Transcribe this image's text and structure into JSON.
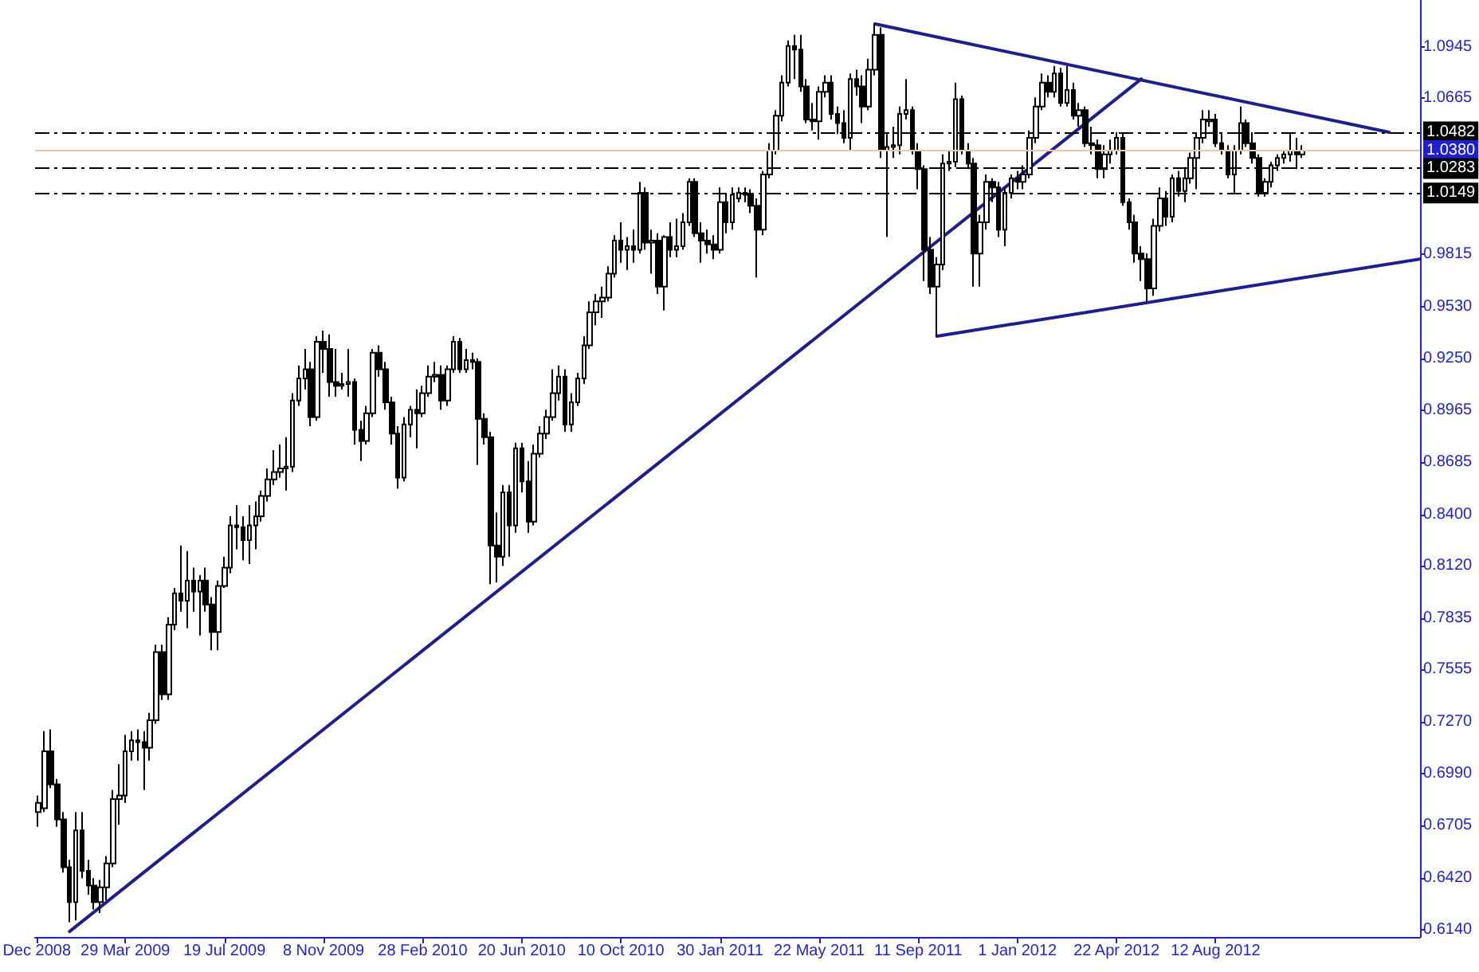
{
  "chart_data": {
    "type": "candlestick",
    "series": [
      {
        "type": "line",
        "color": "#1e1e8c",
        "x": [
          "2009-01-25",
          "2012-05-20"
        ],
        "values": [
          0.613,
          1.077
        ]
      },
      {
        "type": "line",
        "color": "#1e1e8c",
        "x": [
          "2011-07-24",
          "2013-02-24"
        ],
        "values": [
          1.107,
          1.048
        ]
      },
      {
        "type": "line",
        "color": "#1e1e8c",
        "x": [
          "2011-10-02",
          "2013-03-31"
        ],
        "values": [
          0.937,
          0.979
        ]
      },
      {
        "type": "candlestick",
        "color": "#000000",
        "x": [
          "2008-12-21",
          "2008-12-28",
          "2009-01-04",
          "2009-01-11",
          "2009-01-18",
          "2009-01-25",
          "2009-02-01",
          "2009-02-08",
          "2009-02-15",
          "2009-02-22",
          "2009-03-01",
          "2009-03-08",
          "2009-03-15",
          "2009-03-22",
          "2009-03-29",
          "2009-04-05",
          "2009-04-12",
          "2009-04-19",
          "2009-04-26",
          "2009-05-03",
          "2009-05-10",
          "2009-05-17",
          "2009-05-24",
          "2009-05-31",
          "2009-06-07",
          "2009-06-14",
          "2009-06-21",
          "2009-06-28",
          "2009-07-05",
          "2009-07-12",
          "2009-07-19",
          "2009-07-26",
          "2009-08-02",
          "2009-08-09",
          "2009-08-16",
          "2009-08-23",
          "2009-08-30",
          "2009-09-06",
          "2009-09-13",
          "2009-09-20",
          "2009-09-27",
          "2009-10-04",
          "2009-10-11",
          "2009-10-18",
          "2009-10-25",
          "2009-11-01",
          "2009-11-08",
          "2009-11-15",
          "2009-11-22",
          "2009-11-29",
          "2009-12-06",
          "2009-12-13",
          "2009-12-20",
          "2009-12-27",
          "2010-01-03",
          "2010-01-10",
          "2010-01-17",
          "2010-01-24",
          "2010-01-31",
          "2010-02-07",
          "2010-02-14",
          "2010-02-21",
          "2010-02-28",
          "2010-03-07",
          "2010-03-14",
          "2010-03-21",
          "2010-03-28",
          "2010-04-04",
          "2010-04-11",
          "2010-04-18",
          "2010-04-25",
          "2010-05-02",
          "2010-05-09",
          "2010-05-16",
          "2010-05-23",
          "2010-05-30",
          "2010-06-06",
          "2010-06-13",
          "2010-06-20",
          "2010-06-27",
          "2010-07-04",
          "2010-07-11",
          "2010-07-18",
          "2010-07-25",
          "2010-08-01",
          "2010-08-08",
          "2010-08-15",
          "2010-08-22",
          "2010-08-29",
          "2010-09-05",
          "2010-09-12",
          "2010-09-19",
          "2010-09-26",
          "2010-10-03",
          "2010-10-10",
          "2010-10-17",
          "2010-10-24",
          "2010-10-31",
          "2010-11-07",
          "2010-11-14",
          "2010-11-21",
          "2010-11-28",
          "2010-12-05",
          "2010-12-12",
          "2010-12-19",
          "2010-12-26",
          "2011-01-02",
          "2011-01-09",
          "2011-01-16",
          "2011-01-23",
          "2011-01-30",
          "2011-02-06",
          "2011-02-13",
          "2011-02-20",
          "2011-02-27",
          "2011-03-06",
          "2011-03-13",
          "2011-03-20",
          "2011-03-27",
          "2011-04-03",
          "2011-04-10",
          "2011-04-17",
          "2011-04-24",
          "2011-05-01",
          "2011-05-08",
          "2011-05-15",
          "2011-05-22",
          "2011-05-29",
          "2011-06-05",
          "2011-06-12",
          "2011-06-19",
          "2011-06-26",
          "2011-07-03",
          "2011-07-10",
          "2011-07-17",
          "2011-07-24",
          "2011-07-31",
          "2011-08-07",
          "2011-08-14",
          "2011-08-21",
          "2011-08-28",
          "2011-09-04",
          "2011-09-11",
          "2011-09-18",
          "2011-09-25",
          "2011-10-02",
          "2011-10-09",
          "2011-10-16",
          "2011-10-23",
          "2011-10-30",
          "2011-11-06",
          "2011-11-13",
          "2011-11-20",
          "2011-11-27",
          "2011-12-04",
          "2011-12-11",
          "2011-12-18",
          "2011-12-25",
          "2012-01-01",
          "2012-01-08",
          "2012-01-15",
          "2012-01-22",
          "2012-01-29",
          "2012-02-05",
          "2012-02-12",
          "2012-02-19",
          "2012-02-26",
          "2012-03-04",
          "2012-03-11",
          "2012-03-18",
          "2012-03-25",
          "2012-04-01",
          "2012-04-08",
          "2012-04-15",
          "2012-04-22",
          "2012-04-29",
          "2012-05-06",
          "2012-05-13",
          "2012-05-20",
          "2012-05-27",
          "2012-06-03",
          "2012-06-10",
          "2012-06-17",
          "2012-06-24",
          "2012-07-01",
          "2012-07-08",
          "2012-07-15",
          "2012-07-22",
          "2012-07-29",
          "2012-08-05",
          "2012-08-12",
          "2012-08-19",
          "2012-08-26",
          "2012-09-02",
          "2012-09-09",
          "2012-09-16",
          "2012-09-23",
          "2012-09-30",
          "2012-10-07",
          "2012-10-14",
          "2012-10-21",
          "2012-10-28",
          "2012-11-04",
          "2012-11-11",
          "2012-11-18"
        ],
        "ohlc": [
          [
            0.678,
            0.687,
            0.67,
            0.683
          ],
          [
            0.68,
            0.722,
            0.678,
            0.711
          ],
          [
            0.711,
            0.723,
            0.691,
            0.693
          ],
          [
            0.693,
            0.696,
            0.67,
            0.674
          ],
          [
            0.674,
            0.678,
            0.645,
            0.648
          ],
          [
            0.648,
            0.652,
            0.618,
            0.629
          ],
          [
            0.629,
            0.678,
            0.619,
            0.668
          ],
          [
            0.668,
            0.678,
            0.642,
            0.646
          ],
          [
            0.646,
            0.652,
            0.633,
            0.638
          ],
          [
            0.638,
            0.642,
            0.625,
            0.629
          ],
          [
            0.629,
            0.641,
            0.623,
            0.637
          ],
          [
            0.637,
            0.654,
            0.63,
            0.65
          ],
          [
            0.65,
            0.69,
            0.648,
            0.685
          ],
          [
            0.685,
            0.704,
            0.671,
            0.687
          ],
          [
            0.687,
            0.72,
            0.683,
            0.711
          ],
          [
            0.711,
            0.722,
            0.706,
            0.717
          ],
          [
            0.717,
            0.723,
            0.706,
            0.716
          ],
          [
            0.716,
            0.722,
            0.69,
            0.713
          ],
          [
            0.713,
            0.732,
            0.706,
            0.728
          ],
          [
            0.728,
            0.769,
            0.726,
            0.765
          ],
          [
            0.765,
            0.769,
            0.739,
            0.742
          ],
          [
            0.742,
            0.784,
            0.739,
            0.78
          ],
          [
            0.78,
            0.8,
            0.777,
            0.797
          ],
          [
            0.797,
            0.823,
            0.787,
            0.793
          ],
          [
            0.793,
            0.82,
            0.778,
            0.804
          ],
          [
            0.804,
            0.811,
            0.787,
            0.798
          ],
          [
            0.798,
            0.807,
            0.774,
            0.804
          ],
          [
            0.804,
            0.811,
            0.787,
            0.791
          ],
          [
            0.791,
            0.795,
            0.766,
            0.776
          ],
          [
            0.776,
            0.804,
            0.766,
            0.801
          ],
          [
            0.801,
            0.817,
            0.8,
            0.811
          ],
          [
            0.811,
            0.839,
            0.808,
            0.834
          ],
          [
            0.834,
            0.845,
            0.821,
            0.833
          ],
          [
            0.833,
            0.839,
            0.815,
            0.826
          ],
          [
            0.826,
            0.845,
            0.813,
            0.834
          ],
          [
            0.834,
            0.847,
            0.821,
            0.839
          ],
          [
            0.839,
            0.853,
            0.836,
            0.85
          ],
          [
            0.85,
            0.865,
            0.847,
            0.859
          ],
          [
            0.859,
            0.875,
            0.856,
            0.863
          ],
          [
            0.863,
            0.878,
            0.86,
            0.865
          ],
          [
            0.865,
            0.882,
            0.853,
            0.866
          ],
          [
            0.866,
            0.906,
            0.863,
            0.902
          ],
          [
            0.902,
            0.921,
            0.899,
            0.914
          ],
          [
            0.914,
            0.93,
            0.908,
            0.919
          ],
          [
            0.919,
            0.923,
            0.888,
            0.893
          ],
          [
            0.893,
            0.937,
            0.891,
            0.934
          ],
          [
            0.934,
            0.94,
            0.917,
            0.93
          ],
          [
            0.93,
            0.938,
            0.904,
            0.912
          ],
          [
            0.912,
            0.93,
            0.904,
            0.91
          ],
          [
            0.91,
            0.917,
            0.908,
            0.911
          ],
          [
            0.911,
            0.93,
            0.904,
            0.912
          ],
          [
            0.912,
            0.914,
            0.878,
            0.886
          ],
          [
            0.886,
            0.891,
            0.869,
            0.88
          ],
          [
            0.88,
            0.899,
            0.878,
            0.895
          ],
          [
            0.895,
            0.93,
            0.893,
            0.928
          ],
          [
            0.928,
            0.932,
            0.915,
            0.919
          ],
          [
            0.919,
            0.923,
            0.897,
            0.901
          ],
          [
            0.901,
            0.904,
            0.878,
            0.884
          ],
          [
            0.884,
            0.888,
            0.854,
            0.86
          ],
          [
            0.86,
            0.893,
            0.858,
            0.889
          ],
          [
            0.889,
            0.899,
            0.882,
            0.897
          ],
          [
            0.897,
            0.908,
            0.876,
            0.895
          ],
          [
            0.895,
            0.91,
            0.893,
            0.906
          ],
          [
            0.906,
            0.921,
            0.904,
            0.915
          ],
          [
            0.915,
            0.923,
            0.912,
            0.916
          ],
          [
            0.916,
            0.921,
            0.897,
            0.902
          ],
          [
            0.902,
            0.921,
            0.899,
            0.919
          ],
          [
            0.919,
            0.937,
            0.917,
            0.934
          ],
          [
            0.934,
            0.936,
            0.917,
            0.919
          ],
          [
            0.919,
            0.93,
            0.917,
            0.924
          ],
          [
            0.924,
            0.928,
            0.919,
            0.923
          ],
          [
            0.923,
            0.925,
            0.867,
            0.892
          ],
          [
            0.892,
            0.895,
            0.878,
            0.882
          ],
          [
            0.882,
            0.885,
            0.802,
            0.823
          ],
          [
            0.823,
            0.841,
            0.803,
            0.817
          ],
          [
            0.817,
            0.856,
            0.812,
            0.852
          ],
          [
            0.852,
            0.856,
            0.817,
            0.834
          ],
          [
            0.834,
            0.879,
            0.83,
            0.876
          ],
          [
            0.876,
            0.879,
            0.852,
            0.858
          ],
          [
            0.858,
            0.869,
            0.83,
            0.836
          ],
          [
            0.836,
            0.878,
            0.834,
            0.873
          ],
          [
            0.873,
            0.888,
            0.871,
            0.884
          ],
          [
            0.884,
            0.897,
            0.881,
            0.893
          ],
          [
            0.893,
            0.919,
            0.891,
            0.906
          ],
          [
            0.906,
            0.921,
            0.902,
            0.915
          ],
          [
            0.915,
            0.919,
            0.885,
            0.889
          ],
          [
            0.889,
            0.906,
            0.885,
            0.901
          ],
          [
            0.901,
            0.917,
            0.899,
            0.914
          ],
          [
            0.914,
            0.937,
            0.911,
            0.932
          ],
          [
            0.932,
            0.956,
            0.93,
            0.95
          ],
          [
            0.95,
            0.96,
            0.943,
            0.956
          ],
          [
            0.956,
            0.964,
            0.947,
            0.958
          ],
          [
            0.958,
            0.975,
            0.956,
            0.971
          ],
          [
            0.971,
            0.992,
            0.969,
            0.989
          ],
          [
            0.989,
            0.999,
            0.977,
            0.984
          ],
          [
            0.984,
            0.991,
            0.973,
            0.986
          ],
          [
            0.986,
            0.995,
            0.977,
            0.984
          ],
          [
            0.984,
            1.021,
            0.982,
            1.015
          ],
          [
            1.015,
            1.018,
            0.984,
            0.988
          ],
          [
            0.988,
            0.995,
            0.971,
            0.989
          ],
          [
            0.989,
            0.993,
            0.96,
            0.964
          ],
          [
            0.964,
            0.992,
            0.951,
            0.991
          ],
          [
            0.991,
            0.999,
            0.98,
            0.984
          ],
          [
            0.984,
            1.001,
            0.98,
            0.986
          ],
          [
            0.986,
            1.004,
            0.984,
            0.999
          ],
          [
            0.999,
            1.023,
            0.997,
            1.021
          ],
          [
            1.021,
            1.023,
            0.991,
            0.993
          ],
          [
            0.993,
            0.999,
            0.977,
            0.989
          ],
          [
            0.989,
            0.995,
            0.982,
            0.987
          ],
          [
            0.987,
            0.992,
            0.979,
            0.984
          ],
          [
            0.984,
            1.018,
            0.982,
            1.01
          ],
          [
            1.01,
            1.015,
            0.993,
            0.999
          ],
          [
            0.999,
            1.018,
            0.995,
            1.014
          ],
          [
            1.012,
            1.018,
            1.01,
            1.015
          ],
          [
            1.015,
            1.018,
            1.01,
            1.014
          ],
          [
            1.014,
            1.017,
            1.004,
            1.008
          ],
          [
            1.008,
            1.012,
            0.969,
            0.995
          ],
          [
            0.995,
            1.027,
            0.992,
            1.025
          ],
          [
            1.025,
            1.042,
            1.023,
            1.038
          ],
          [
            1.038,
            1.06,
            1.036,
            1.057
          ],
          [
            1.057,
            1.079,
            1.054,
            1.075
          ],
          [
            1.075,
            1.098,
            1.073,
            1.095
          ],
          [
            1.095,
            1.101,
            1.077,
            1.093
          ],
          [
            1.093,
            1.101,
            1.07,
            1.073
          ],
          [
            1.073,
            1.077,
            1.053,
            1.055
          ],
          [
            1.055,
            1.064,
            1.049,
            1.054
          ],
          [
            1.054,
            1.073,
            1.044,
            1.07
          ],
          [
            1.07,
            1.079,
            1.067,
            1.075
          ],
          [
            1.075,
            1.079,
            1.055,
            1.058
          ],
          [
            1.058,
            1.062,
            1.047,
            1.053
          ],
          [
            1.053,
            1.06,
            1.042,
            1.045
          ],
          [
            1.045,
            1.08,
            1.038,
            1.077
          ],
          [
            1.077,
            1.082,
            1.068,
            1.073
          ],
          [
            1.073,
            1.079,
            1.053,
            1.062
          ],
          [
            1.062,
            1.088,
            1.06,
            1.082
          ],
          [
            1.082,
            1.107,
            1.079,
            1.101
          ],
          [
            1.101,
            1.105,
            1.034,
            1.038
          ],
          [
            1.038,
            1.047,
            0.991,
            1.04
          ],
          [
            1.04,
            1.051,
            1.034,
            1.041
          ],
          [
            1.041,
            1.062,
            1.036,
            1.058
          ],
          [
            1.058,
            1.077,
            1.055,
            1.06
          ],
          [
            1.06,
            1.062,
            1.036,
            1.038
          ],
          [
            1.038,
            1.042,
            1.017,
            1.028
          ],
          [
            1.028,
            1.03,
            0.967,
            0.984
          ],
          [
            0.984,
            0.991,
            0.96,
            0.964
          ],
          [
            0.964,
            0.98,
            0.937,
            0.976
          ],
          [
            0.976,
            1.036,
            0.973,
            1.031
          ],
          [
            1.031,
            1.038,
            1.027,
            1.032
          ],
          [
            1.032,
            1.075,
            1.029,
            1.066
          ],
          [
            1.066,
            1.068,
            1.036,
            1.038
          ],
          [
            1.038,
            1.042,
            1.028,
            1.031
          ],
          [
            1.031,
            1.034,
            0.964,
            0.982
          ],
          [
            0.982,
            1.003,
            0.964,
            0.999
          ],
          [
            0.999,
            1.025,
            0.995,
            1.021
          ],
          [
            1.021,
            1.023,
            1.01,
            1.018
          ],
          [
            1.018,
            1.021,
            0.991,
            0.995
          ],
          [
            0.995,
            1.018,
            0.986,
            1.015
          ],
          [
            1.015,
            1.025,
            1.012,
            1.023
          ],
          [
            1.023,
            1.027,
            1.017,
            1.021
          ],
          [
            1.021,
            1.03,
            1.017,
            1.025
          ],
          [
            1.025,
            1.049,
            1.023,
            1.045
          ],
          [
            1.045,
            1.067,
            1.042,
            1.062
          ],
          [
            1.062,
            1.08,
            1.06,
            1.075
          ],
          [
            1.075,
            1.079,
            1.067,
            1.07
          ],
          [
            1.07,
            1.084,
            1.067,
            1.08
          ],
          [
            1.08,
            1.083,
            1.062,
            1.064
          ],
          [
            1.064,
            1.084,
            1.062,
            1.071
          ],
          [
            1.071,
            1.075,
            1.055,
            1.057
          ],
          [
            1.057,
            1.064,
            1.051,
            1.06
          ],
          [
            1.06,
            1.062,
            1.04,
            1.042
          ],
          [
            1.042,
            1.051,
            1.036,
            1.041
          ],
          [
            1.041,
            1.044,
            1.023,
            1.028
          ],
          [
            1.028,
            1.041,
            1.023,
            1.036
          ],
          [
            1.036,
            1.044,
            1.031,
            1.038
          ],
          [
            1.038,
            1.048,
            1.036,
            1.045
          ],
          [
            1.045,
            1.048,
            1.008,
            1.01
          ],
          [
            1.01,
            1.012,
            0.995,
            0.999
          ],
          [
            0.999,
            1.003,
            0.977,
            0.982
          ],
          [
            0.982,
            0.986,
            0.967,
            0.979
          ],
          [
            0.979,
            0.982,
            0.956,
            0.963
          ],
          [
            0.963,
            1.001,
            0.959,
            0.997
          ],
          [
            0.997,
            1.018,
            0.994,
            1.012
          ],
          [
            1.012,
            1.016,
            0.997,
            1.002
          ],
          [
            1.002,
            1.025,
            0.999,
            1.023
          ],
          [
            1.023,
            1.027,
            1.013,
            1.016
          ],
          [
            1.016,
            1.029,
            1.01,
            1.023
          ],
          [
            1.023,
            1.037,
            1.02,
            1.034
          ],
          [
            1.034,
            1.048,
            1.017,
            1.045
          ],
          [
            1.045,
            1.06,
            1.042,
            1.055
          ],
          [
            1.054,
            1.06,
            1.051,
            1.055
          ],
          [
            1.055,
            1.058,
            1.04,
            1.042
          ],
          [
            1.042,
            1.047,
            1.036,
            1.038
          ],
          [
            1.038,
            1.041,
            1.023,
            1.025
          ],
          [
            1.025,
            1.041,
            1.015,
            1.038
          ],
          [
            1.038,
            1.062,
            1.036,
            1.053
          ],
          [
            1.053,
            1.055,
            1.04,
            1.042
          ],
          [
            1.042,
            1.048,
            1.031,
            1.034
          ],
          [
            1.034,
            1.036,
            1.013,
            1.015
          ],
          [
            1.015,
            1.023,
            1.013,
            1.021
          ],
          [
            1.021,
            1.032,
            1.018,
            1.03
          ],
          [
            1.03,
            1.036,
            1.027,
            1.034
          ],
          [
            1.034,
            1.038,
            1.031,
            1.036
          ],
          [
            1.036,
            1.047,
            1.032,
            1.038
          ],
          [
            1.038,
            1.045,
            1.028,
            1.036
          ],
          [
            1.036,
            1.041,
            1.034,
            1.038
          ]
        ]
      }
    ],
    "xlim": [
      "2008-12-17",
      "2013-03-31"
    ],
    "xticks": [
      {
        "value": "2008-12-19",
        "label": "Dec 2008"
      },
      {
        "value": "2009-03-29",
        "label": "29 Mar 2009"
      },
      {
        "value": "2009-07-19",
        "label": "19 Jul 2009"
      },
      {
        "value": "2009-11-08",
        "label": "8 Nov 2009"
      },
      {
        "value": "2010-02-28",
        "label": "28 Feb 2010"
      },
      {
        "value": "2010-06-20",
        "label": "20 Jun 2010"
      },
      {
        "value": "2010-10-10",
        "label": "10 Oct 2010"
      },
      {
        "value": "2011-01-30",
        "label": "30 Jan 2011"
      },
      {
        "value": "2011-05-22",
        "label": "22 May 2011"
      },
      {
        "value": "2011-09-11",
        "label": "11 Sep 2011"
      },
      {
        "value": "2012-01-01",
        "label": "1 Jan 2012"
      },
      {
        "value": "2012-04-22",
        "label": "22 Apr 2012"
      },
      {
        "value": "2012-08-12",
        "label": "12 Aug 2012"
      }
    ],
    "ylim": [
      0.61,
      1.12
    ],
    "yticks": [
      1.0945,
      1.0665,
      0.9815,
      {
        "value": 0.953,
        "label": "0.9530"
      },
      {
        "value": 0.925,
        "label": "0.9250"
      },
      0.8965,
      0.8685,
      {
        "value": 0.84,
        "label": "0.8400"
      },
      {
        "value": 0.812,
        "label": "0.8120"
      },
      0.7835,
      0.7555,
      {
        "value": 0.727,
        "label": "0.7270"
      },
      {
        "value": 0.699,
        "label": "0.6990"
      },
      0.6705,
      {
        "value": 0.642,
        "label": "0.6420"
      },
      {
        "value": 0.614,
        "label": "0.6140"
      }
    ],
    "ref_lines": [
      {
        "axis": "y",
        "value": 1.0482,
        "label": "1.0482",
        "color": "#000000",
        "line_style": "dashed"
      },
      {
        "axis": "y",
        "value": 1.038,
        "label": "1.0380",
        "color": "#f3c79b",
        "line_style": "solid"
      },
      {
        "axis": "y",
        "value": 1.0283,
        "label": "1.0283",
        "color": "#000000",
        "line_style": "dashed"
      },
      {
        "axis": "y",
        "value": 1.0149,
        "label": "1.0149",
        "color": "#000000",
        "line_style": "dashed"
      }
    ],
    "marker": "none"
  }
}
